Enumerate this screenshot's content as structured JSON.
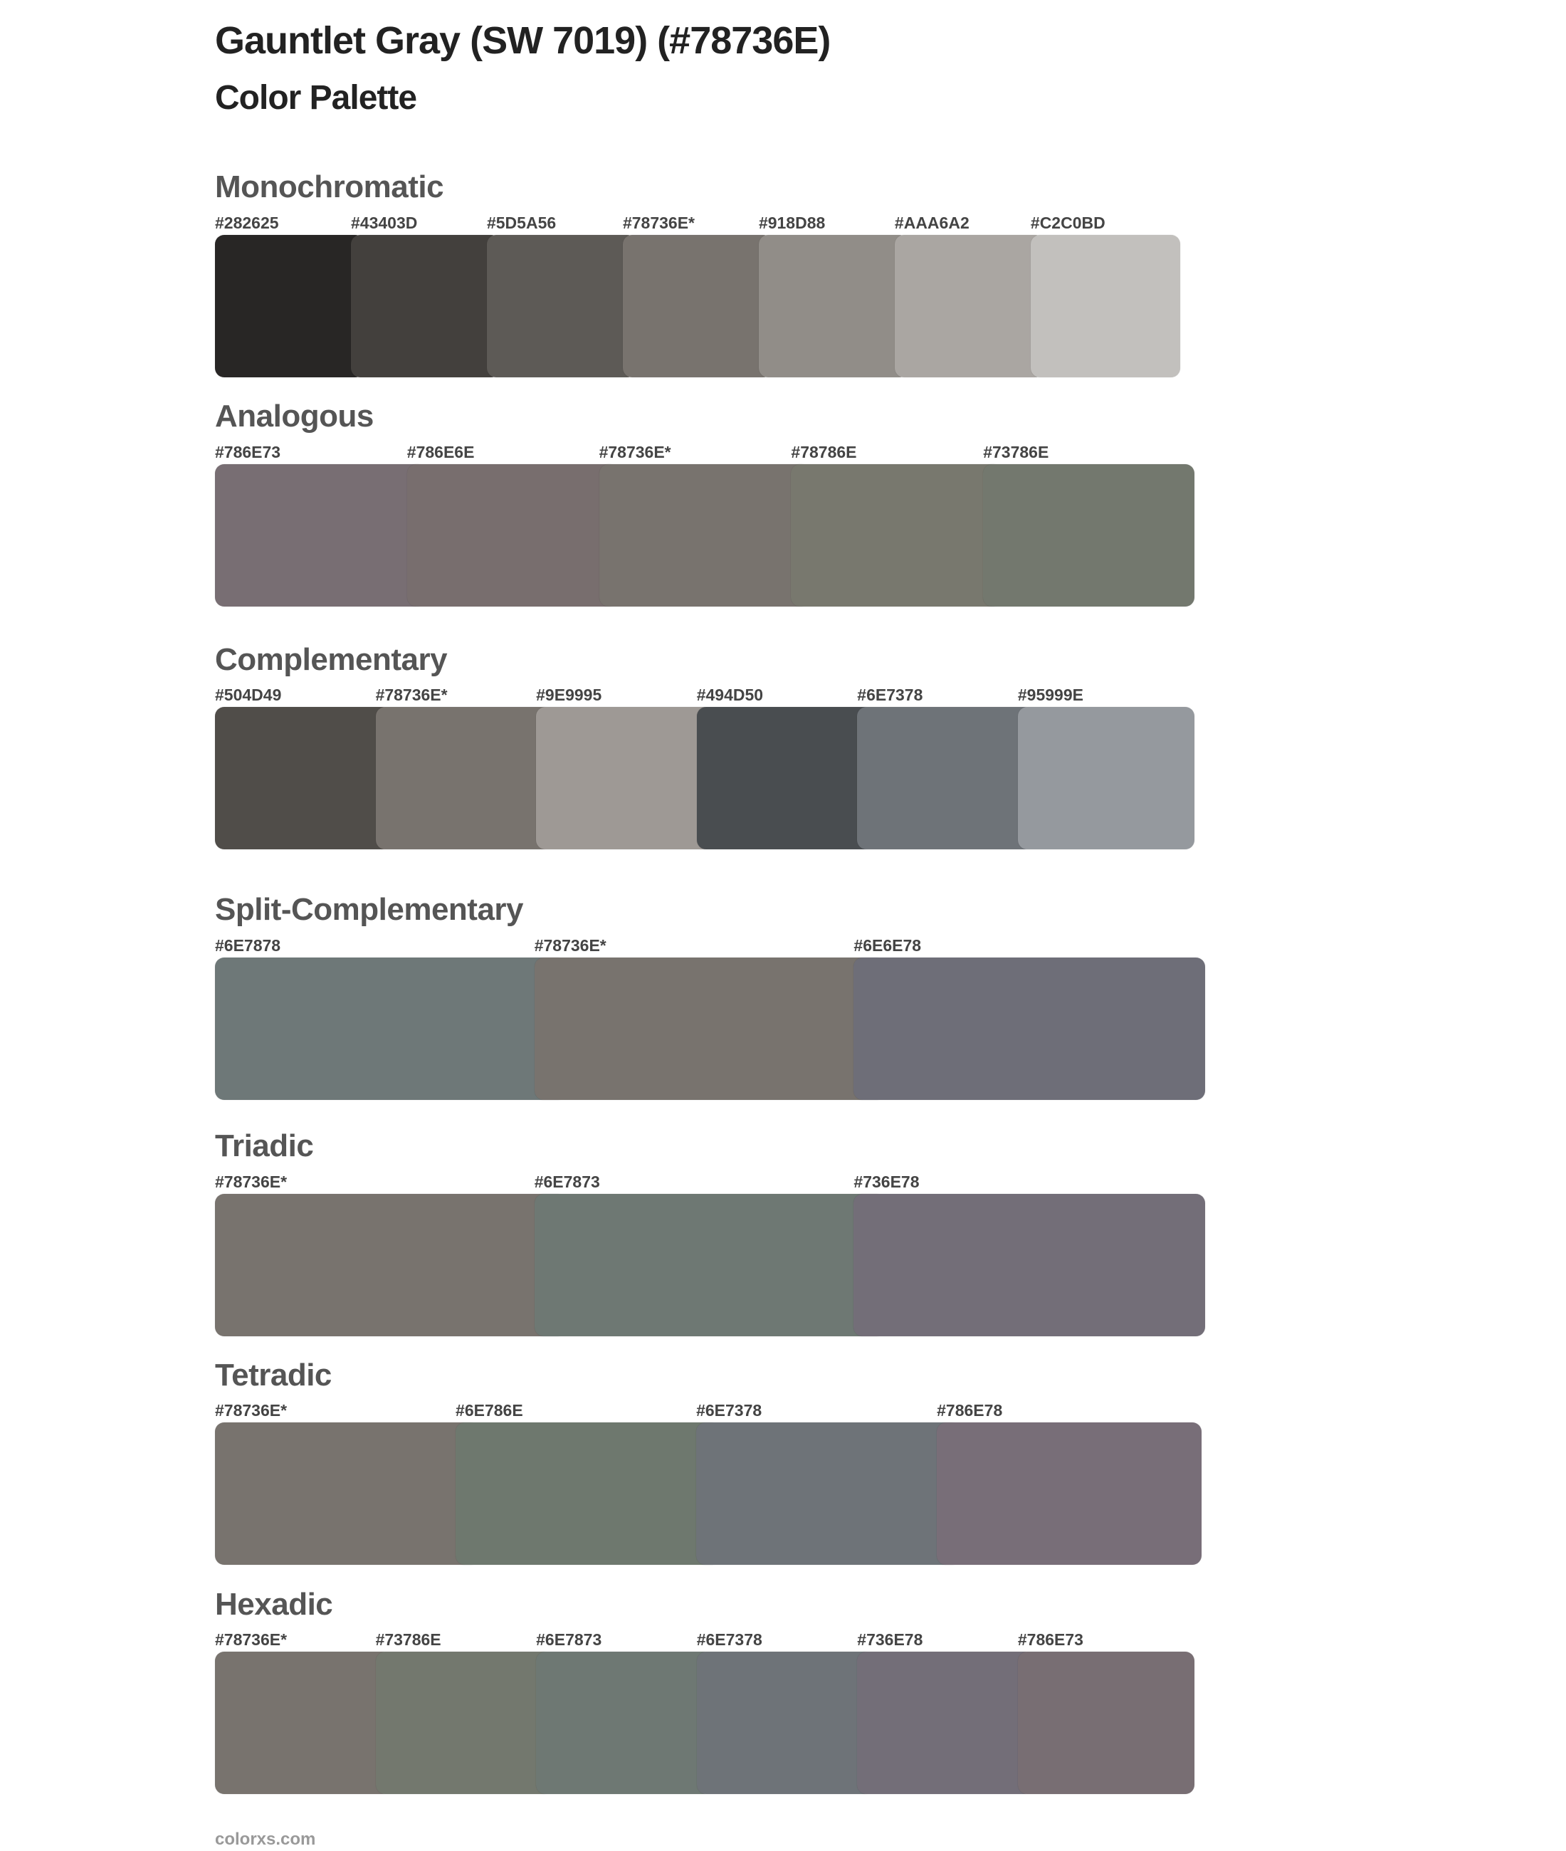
{
  "header": {
    "title": "Gauntlet Gray (SW 7019) (#78736E)",
    "subtitle": "Color Palette"
  },
  "sections": [
    {
      "title": "Monochromatic",
      "swatches": [
        {
          "label": "#282625",
          "color": "#282625"
        },
        {
          "label": "#43403D",
          "color": "#43403D"
        },
        {
          "label": "#5D5A56",
          "color": "#5D5A56"
        },
        {
          "label": "#78736E*",
          "color": "#78736E"
        },
        {
          "label": "#918D88",
          "color": "#918D88"
        },
        {
          "label": "#AAA6A2",
          "color": "#AAA6A2"
        },
        {
          "label": "#C2C0BD",
          "color": "#C2C0BD"
        }
      ]
    },
    {
      "title": "Analogous",
      "swatches": [
        {
          "label": "#786E73",
          "color": "#786E73"
        },
        {
          "label": "#786E6E",
          "color": "#786E6E"
        },
        {
          "label": "#78736E*",
          "color": "#78736E"
        },
        {
          "label": "#78786E",
          "color": "#78786E"
        },
        {
          "label": "#73786E",
          "color": "#73786E"
        }
      ]
    },
    {
      "title": "Complementary",
      "swatches": [
        {
          "label": "#504D49",
          "color": "#504D49"
        },
        {
          "label": "#78736E*",
          "color": "#78736E"
        },
        {
          "label": "#9E9995",
          "color": "#9E9995"
        },
        {
          "label": "#494D50",
          "color": "#494D50"
        },
        {
          "label": "#6E7378",
          "color": "#6E7378"
        },
        {
          "label": "#95999E",
          "color": "#95999E"
        }
      ]
    },
    {
      "title": "Split-Complementary",
      "swatches": [
        {
          "label": "#6E7878",
          "color": "#6E7878"
        },
        {
          "label": "#78736E*",
          "color": "#78736E"
        },
        {
          "label": "#6E6E78",
          "color": "#6E6E78"
        }
      ]
    },
    {
      "title": "Triadic",
      "swatches": [
        {
          "label": "#78736E*",
          "color": "#78736E"
        },
        {
          "label": "#6E7873",
          "color": "#6E7873"
        },
        {
          "label": "#736E78",
          "color": "#736E78"
        }
      ]
    },
    {
      "title": "Tetradic",
      "swatches": [
        {
          "label": "#78736E*",
          "color": "#78736E"
        },
        {
          "label": "#6E786E",
          "color": "#6E786E"
        },
        {
          "label": "#6E7378",
          "color": "#6E7378"
        },
        {
          "label": "#786E78",
          "color": "#786E78"
        }
      ]
    },
    {
      "title": "Hexadic",
      "swatches": [
        {
          "label": "#78736E*",
          "color": "#78736E"
        },
        {
          "label": "#73786E",
          "color": "#73786E"
        },
        {
          "label": "#6E7873",
          "color": "#6E7873"
        },
        {
          "label": "#6E7378",
          "color": "#6E7378"
        },
        {
          "label": "#736E78",
          "color": "#736E78"
        },
        {
          "label": "#786E73",
          "color": "#786E73"
        }
      ]
    }
  ],
  "footer": {
    "text": "colorxs.com"
  }
}
